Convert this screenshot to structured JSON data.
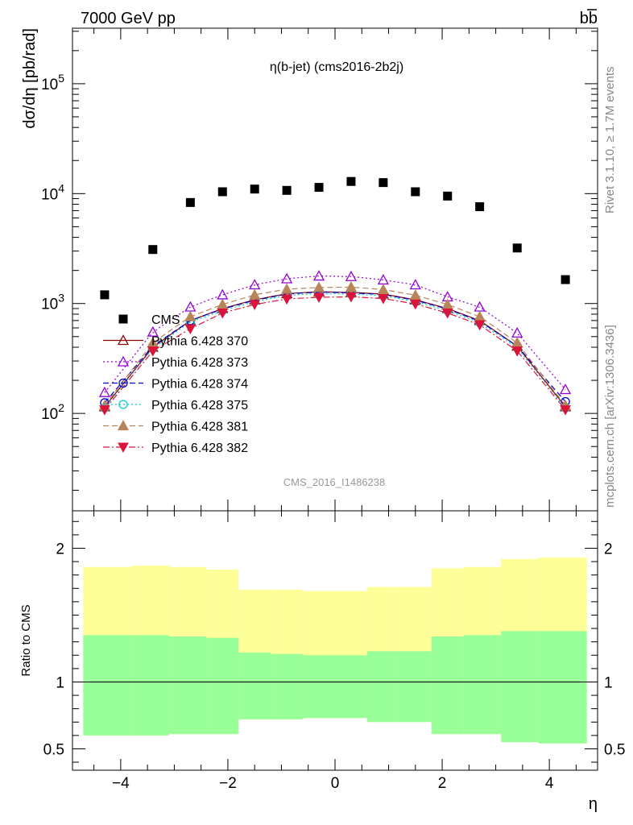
{
  "header": {
    "left": "7000 GeV pp",
    "right": "bb"
  },
  "side": {
    "rivet": "Rivet 3.1.10, ≥ 1.7M events",
    "mcplots": "mcplots.cern.ch [arXiv:1306.3436]"
  },
  "watermark": "CMS_2016_I1486238",
  "chart_data": [
    {
      "type": "scatter",
      "title": "η(b-jet) (cms2016-2b2j)",
      "ylabel": "dσ/dη [pb/rad]",
      "yscale": "log",
      "xlim": [
        -4.9,
        4.9
      ],
      "ylim": [
        13,
        320000
      ],
      "ytick_labels": [
        "10^2",
        "10^3",
        "10^4",
        "10^5"
      ],
      "x": [
        -4.3,
        -3.4,
        -2.7,
        -2.1,
        -1.5,
        -0.9,
        -0.3,
        0.3,
        0.9,
        1.5,
        2.1,
        2.7,
        3.4,
        4.3
      ],
      "series": [
        {
          "name": "CMS",
          "color": "#000000",
          "marker": "square",
          "line": "none",
          "values": [
            1200,
            3100,
            8300,
            10400,
            11000,
            10700,
            11400,
            12900,
            12600,
            10400,
            9500,
            7600,
            3200,
            1650
          ]
        },
        {
          "name": "Pythia 6.428 370",
          "color": "#8b0000",
          "marker": "triangle-open",
          "line": "solid",
          "values": [
            115,
            400,
            700,
            900,
            1080,
            1230,
            1280,
            1260,
            1220,
            1080,
            900,
            700,
            410,
            115
          ]
        },
        {
          "name": "Pythia 6.428 373",
          "color": "#9400d3",
          "marker": "triangle-open",
          "line": "dotted",
          "values": [
            155,
            550,
            930,
            1200,
            1480,
            1680,
            1780,
            1760,
            1640,
            1480,
            1150,
            930,
            540,
            165
          ]
        },
        {
          "name": "Pythia 6.428 374",
          "color": "#0000cd",
          "marker": "circle-open",
          "line": "dashed",
          "values": [
            125,
            410,
            700,
            890,
            1070,
            1220,
            1270,
            1250,
            1210,
            1070,
            890,
            690,
            410,
            128
          ]
        },
        {
          "name": "Pythia 6.428 375",
          "color": "#00ced1",
          "marker": "circle-open",
          "line": "dotted",
          "values": [
            112,
            390,
            680,
            860,
            1040,
            1190,
            1230,
            1220,
            1180,
            1040,
            860,
            670,
            395,
            112
          ]
        },
        {
          "name": "Pythia 6.428 381",
          "color": "#b8845a",
          "marker": "triangle-filled",
          "line": "dashed",
          "values": [
            118,
            440,
            760,
            980,
            1200,
            1350,
            1400,
            1410,
            1340,
            1190,
            980,
            760,
            440,
            118
          ]
        },
        {
          "name": "Pythia 6.428 382",
          "color": "#dc143c",
          "marker": "triangle-down-filled",
          "line": "dashdot",
          "values": [
            108,
            370,
            590,
            820,
            980,
            1100,
            1140,
            1150,
            1110,
            990,
            820,
            640,
            370,
            108
          ]
        }
      ]
    },
    {
      "type": "area",
      "ylabel": "Ratio to CMS",
      "xlabel": "η",
      "xlim": [
        -4.9,
        4.9
      ],
      "ylim": [
        0.34,
        2.28
      ],
      "xticks": [
        -4,
        -2,
        0,
        2,
        4
      ],
      "xtick_labels": [
        "−4",
        "−2",
        "0",
        "2",
        "4"
      ],
      "yticks": [
        0.5,
        1,
        2
      ],
      "ytick_labels": [
        "0.5",
        "1",
        "2"
      ],
      "reference_line": 1,
      "bins": [
        [
          -4.7,
          -3.8
        ],
        [
          -3.8,
          -3.1
        ],
        [
          -3.1,
          -2.4
        ],
        [
          -2.4,
          -1.8
        ],
        [
          -1.8,
          -1.2
        ],
        [
          -1.2,
          -0.6
        ],
        [
          -0.6,
          0.0
        ],
        [
          0.0,
          0.6
        ],
        [
          0.6,
          1.2
        ],
        [
          1.2,
          1.8
        ],
        [
          1.8,
          2.4
        ],
        [
          2.4,
          3.1
        ],
        [
          3.1,
          3.8
        ],
        [
          3.8,
          4.7
        ]
      ],
      "bands": [
        {
          "color": "#ffff99",
          "low": [
            0.6,
            0.6,
            0.61,
            0.61,
            0.72,
            0.72,
            0.73,
            0.73,
            0.7,
            0.7,
            0.61,
            0.61,
            0.55,
            0.54
          ],
          "high": [
            1.86,
            1.87,
            1.86,
            1.84,
            1.69,
            1.69,
            1.68,
            1.68,
            1.71,
            1.71,
            1.85,
            1.86,
            1.92,
            1.93
          ]
        },
        {
          "color": "#99ff99",
          "low": [
            0.6,
            0.6,
            0.61,
            0.61,
            0.72,
            0.72,
            0.73,
            0.73,
            0.7,
            0.7,
            0.61,
            0.61,
            0.55,
            0.54
          ],
          "high": [
            1.35,
            1.35,
            1.34,
            1.33,
            1.22,
            1.21,
            1.2,
            1.2,
            1.23,
            1.23,
            1.34,
            1.35,
            1.38,
            1.38
          ]
        }
      ]
    }
  ]
}
